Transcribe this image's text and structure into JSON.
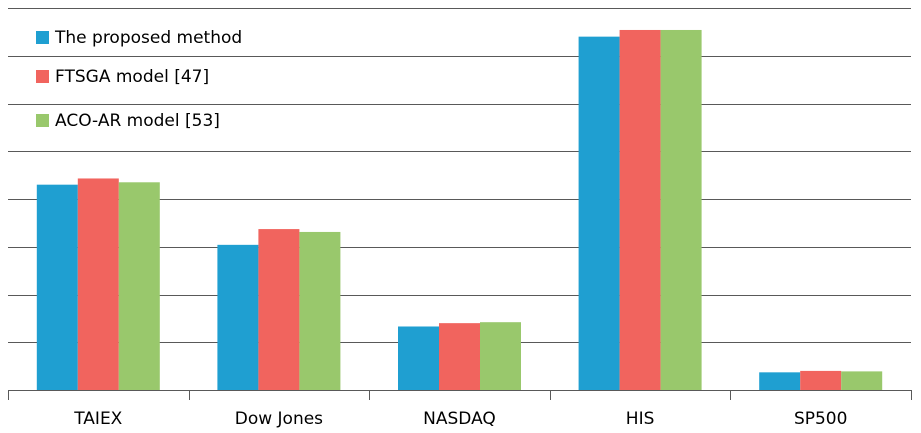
{
  "chart_data": {
    "type": "bar",
    "title": "",
    "xlabel": "",
    "ylabel": "",
    "categories": [
      "TAIEX",
      "Dow Jones",
      "NASDAQ",
      "HIS",
      "SP500"
    ],
    "series": [
      {
        "name": "The proposed method",
        "color": "#1F9FD1",
        "values": [
          4.3,
          3.04,
          1.33,
          7.4,
          0.37
        ]
      },
      {
        "name": "FTSGA model [47]",
        "color": "#F1645E",
        "values": [
          4.43,
          3.37,
          1.4,
          7.54,
          0.4
        ]
      },
      {
        "name": "ACO-AR model [53]",
        "color": "#99C86C",
        "values": [
          4.35,
          3.31,
          1.42,
          7.54,
          0.39
        ]
      }
    ],
    "ylim": [
      0,
      8
    ],
    "y_gridline_step": 1,
    "grid": true,
    "legend_position": "top-left"
  }
}
